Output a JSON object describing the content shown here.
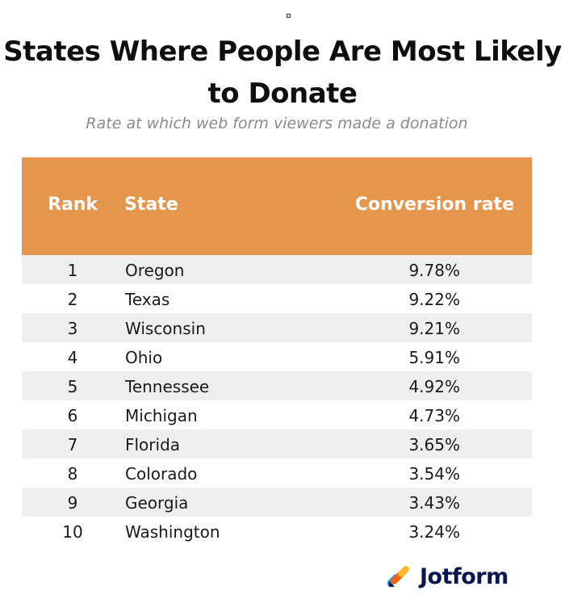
{
  "title": "States Where People Are Most Likely to Donate",
  "subtitle": "Rate at which web form viewers made a donation",
  "table": {
    "headers": {
      "rank": "Rank",
      "state": "State",
      "rate": "Conversion rate"
    },
    "rows": [
      {
        "rank": "1",
        "state": "Oregon",
        "rate": "9.78%"
      },
      {
        "rank": "2",
        "state": "Texas",
        "rate": "9.22%"
      },
      {
        "rank": "3",
        "state": "Wisconsin",
        "rate": "9.21%"
      },
      {
        "rank": "4",
        "state": "Ohio",
        "rate": "5.91%"
      },
      {
        "rank": "5",
        "state": "Tennessee",
        "rate": "4.92%"
      },
      {
        "rank": "6",
        "state": "Michigan",
        "rate": "4.73%"
      },
      {
        "rank": "7",
        "state": "Florida",
        "rate": "3.65%"
      },
      {
        "rank": "8",
        "state": "Colorado",
        "rate": "3.54%"
      },
      {
        "rank": "9",
        "state": "Georgia",
        "rate": "3.43%"
      },
      {
        "rank": "10",
        "state": "Washington",
        "rate": "3.24%"
      }
    ]
  },
  "brand": {
    "name": "Jotform",
    "icon": "jotform-logo-icon",
    "text_color": "#0a1551",
    "mark_colors": [
      "#0099ff",
      "#ff6100",
      "#ffb629",
      "#0a1551"
    ]
  },
  "colors": {
    "header_bg": "#e5964d",
    "stripe_bg": "#efefef"
  }
}
